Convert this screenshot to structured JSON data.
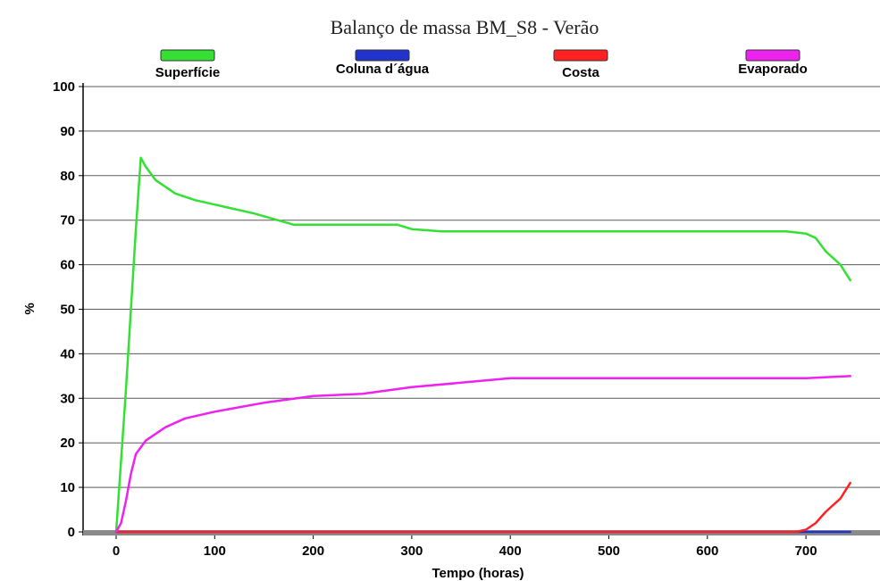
{
  "chart_data": {
    "type": "line",
    "title": "Balanço de massa BM_S8 - Verão",
    "xlabel": "Tempo (horas)",
    "ylabel": "%",
    "xlim": [
      -30,
      760
    ],
    "ylim": [
      0,
      100
    ],
    "x_ticks": [
      0,
      100,
      200,
      300,
      400,
      500,
      600,
      700
    ],
    "y_ticks": [
      0,
      10,
      20,
      30,
      40,
      50,
      60,
      70,
      80,
      90,
      100
    ],
    "grid": "horizontal",
    "legend_position": "top",
    "series": [
      {
        "name": "Superfície",
        "color": "#33e033",
        "points": [
          [
            0,
            0
          ],
          [
            10,
            32
          ],
          [
            20,
            68
          ],
          [
            25,
            84
          ],
          [
            30,
            82
          ],
          [
            40,
            79
          ],
          [
            60,
            76
          ],
          [
            80,
            74.5
          ],
          [
            100,
            73.5
          ],
          [
            140,
            71.5
          ],
          [
            180,
            69
          ],
          [
            200,
            69
          ],
          [
            250,
            69
          ],
          [
            285,
            69
          ],
          [
            300,
            68
          ],
          [
            330,
            67.5
          ],
          [
            400,
            67.5
          ],
          [
            500,
            67.5
          ],
          [
            600,
            67.5
          ],
          [
            680,
            67.5
          ],
          [
            700,
            67
          ],
          [
            710,
            66
          ],
          [
            720,
            63
          ],
          [
            735,
            60
          ],
          [
            745,
            56.5
          ]
        ]
      },
      {
        "name": "Coluna d´água",
        "color": "#2233cc",
        "points": [
          [
            0,
            0
          ],
          [
            100,
            0
          ],
          [
            200,
            0
          ],
          [
            300,
            0
          ],
          [
            400,
            0
          ],
          [
            500,
            0
          ],
          [
            600,
            0
          ],
          [
            700,
            0
          ],
          [
            745,
            0
          ]
        ]
      },
      {
        "name": "Costa",
        "color": "#ff2222",
        "points": [
          [
            0,
            0
          ],
          [
            100,
            0
          ],
          [
            200,
            0
          ],
          [
            300,
            0
          ],
          [
            400,
            0
          ],
          [
            500,
            0
          ],
          [
            600,
            0
          ],
          [
            690,
            0
          ],
          [
            700,
            0.5
          ],
          [
            710,
            2
          ],
          [
            720,
            4.5
          ],
          [
            735,
            7.5
          ],
          [
            745,
            11
          ]
        ]
      },
      {
        "name": "Evaporado",
        "color": "#ee22ee",
        "points": [
          [
            0,
            0
          ],
          [
            5,
            2
          ],
          [
            10,
            7
          ],
          [
            15,
            13
          ],
          [
            20,
            17.5
          ],
          [
            30,
            20.5
          ],
          [
            40,
            22
          ],
          [
            50,
            23.5
          ],
          [
            70,
            25.5
          ],
          [
            100,
            27
          ],
          [
            150,
            29
          ],
          [
            200,
            30.5
          ],
          [
            250,
            31
          ],
          [
            300,
            32.5
          ],
          [
            350,
            33.5
          ],
          [
            400,
            34.5
          ],
          [
            500,
            34.5
          ],
          [
            600,
            34.5
          ],
          [
            700,
            34.5
          ],
          [
            745,
            35
          ]
        ]
      }
    ]
  }
}
